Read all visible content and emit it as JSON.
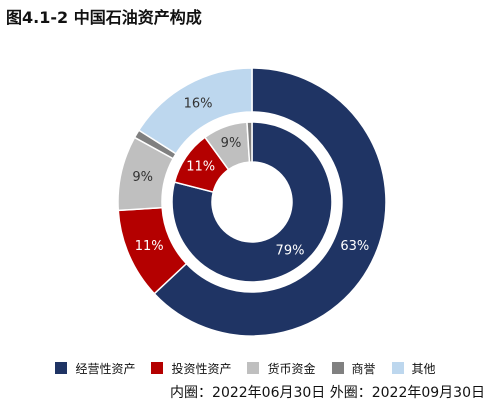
{
  "title": "图4.1-2 中国石油资产构成",
  "caption": "内圈：2022年06月30日 外圈：2022年09月30日",
  "colors": {
    "operating_assets": "#1f3464",
    "investment_assets": "#b40000",
    "monetary_funds": "#bfbfbf",
    "goodwill": "#808080",
    "other": "#bdd7ee"
  },
  "chart_data": {
    "type": "pie",
    "title": "图4.1-2 中国石油资产构成",
    "categories": [
      "经营性资产",
      "投资性资产",
      "货币资金",
      "商誉",
      "其他"
    ],
    "series": [
      {
        "name": "内圈：2022年06月30日",
        "ring": "inner",
        "values": [
          79,
          11,
          9,
          1,
          0
        ],
        "labels": [
          "79%",
          "11%",
          "9%",
          "",
          ""
        ]
      },
      {
        "name": "外圈：2022年09月30日",
        "ring": "outer",
        "values": [
          63,
          11,
          9,
          1,
          16
        ],
        "labels": [
          "63%",
          "11%",
          "9%",
          "",
          "16%"
        ]
      }
    ],
    "legend_position": "bottom"
  }
}
